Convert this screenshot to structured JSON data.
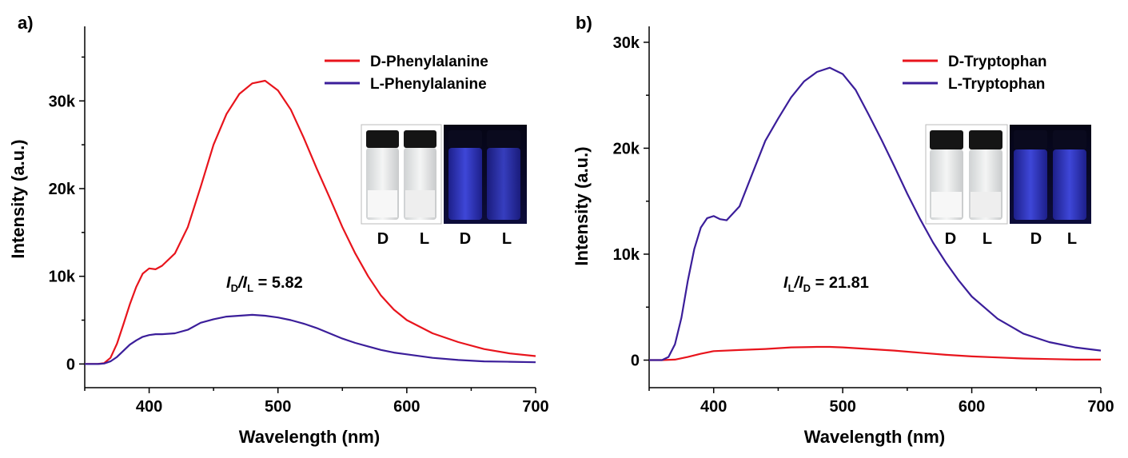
{
  "chart_data": [
    {
      "type": "line",
      "panel_label": "a)",
      "xlabel": "Wavelength (nm)",
      "ylabel": "Intensity (a.u.)",
      "xlim": [
        350,
        700
      ],
      "ylim": [
        -2700,
        38500
      ],
      "xticks": [
        400,
        500,
        600,
        700
      ],
      "yticks": [
        0,
        10000,
        20000,
        30000
      ],
      "ytick_labels": [
        "0",
        "10k",
        "20k",
        "30k"
      ],
      "legend_position": "top-right",
      "series": [
        {
          "name": "D-Phenylalanine",
          "color": "#e8141c",
          "x": [
            350,
            360,
            365,
            370,
            375,
            380,
            385,
            390,
            395,
            400,
            405,
            410,
            420,
            430,
            440,
            450,
            460,
            470,
            480,
            490,
            500,
            510,
            520,
            530,
            540,
            550,
            560,
            570,
            580,
            590,
            600,
            620,
            640,
            660,
            680,
            700
          ],
          "values": [
            0,
            0,
            100,
            700,
            2300,
            4500,
            6800,
            8800,
            10300,
            10900,
            10800,
            11200,
            12600,
            15600,
            20200,
            25000,
            28500,
            30800,
            32000,
            32300,
            31200,
            29000,
            25800,
            22300,
            19000,
            15600,
            12600,
            10000,
            7800,
            6200,
            5000,
            3500,
            2500,
            1700,
            1200,
            900
          ]
        },
        {
          "name": "L-Phenylalanine",
          "color": "#3b1e9a",
          "x": [
            350,
            360,
            365,
            370,
            375,
            380,
            385,
            390,
            395,
            400,
            405,
            410,
            420,
            430,
            440,
            450,
            460,
            470,
            480,
            490,
            500,
            510,
            520,
            530,
            540,
            550,
            560,
            570,
            580,
            590,
            600,
            620,
            640,
            660,
            680,
            700
          ],
          "values": [
            0,
            0,
            50,
            300,
            800,
            1500,
            2200,
            2700,
            3100,
            3300,
            3400,
            3400,
            3500,
            3900,
            4700,
            5100,
            5400,
            5500,
            5600,
            5500,
            5300,
            5000,
            4600,
            4100,
            3500,
            2900,
            2400,
            2000,
            1600,
            1300,
            1100,
            700,
            450,
            300,
            250,
            200
          ]
        }
      ],
      "annotation": {
        "prefix_1": "I",
        "sub_1": "D",
        "slash": "/",
        "prefix_2": "I",
        "sub_2": "L",
        "rest": " = 5.82"
      },
      "inset_labels": [
        "D",
        "L",
        "D",
        "L"
      ]
    },
    {
      "type": "line",
      "panel_label": "b)",
      "xlabel": "Wavelength (nm)",
      "ylabel": "Intensity (a.u.)",
      "xlim": [
        350,
        700
      ],
      "ylim": [
        -2600,
        31500
      ],
      "xticks": [
        400,
        500,
        600,
        700
      ],
      "yticks": [
        0,
        10000,
        20000,
        30000
      ],
      "ytick_labels": [
        "0",
        "10k",
        "20k",
        "30k"
      ],
      "legend_position": "top-right",
      "series": [
        {
          "name": "D-Tryptophan",
          "color": "#e8141c",
          "x": [
            350,
            360,
            370,
            380,
            390,
            400,
            420,
            440,
            460,
            480,
            490,
            500,
            520,
            540,
            560,
            580,
            600,
            620,
            640,
            660,
            680,
            700
          ],
          "values": [
            0,
            0,
            50,
            300,
            600,
            850,
            950,
            1050,
            1200,
            1250,
            1250,
            1200,
            1050,
            900,
            700,
            500,
            350,
            250,
            150,
            100,
            50,
            50
          ]
        },
        {
          "name": "L-Tryptophan",
          "color": "#3b1e9a",
          "x": [
            350,
            360,
            365,
            370,
            375,
            380,
            385,
            390,
            395,
            400,
            405,
            410,
            420,
            430,
            440,
            450,
            460,
            470,
            480,
            490,
            500,
            510,
            520,
            530,
            540,
            550,
            560,
            570,
            580,
            590,
            600,
            620,
            640,
            660,
            680,
            700
          ],
          "values": [
            0,
            0,
            300,
            1500,
            4000,
            7500,
            10500,
            12500,
            13400,
            13600,
            13300,
            13200,
            14500,
            17600,
            20700,
            22800,
            24800,
            26300,
            27200,
            27600,
            27000,
            25500,
            23200,
            20800,
            18300,
            15700,
            13300,
            11100,
            9200,
            7500,
            6000,
            3900,
            2500,
            1700,
            1200,
            900
          ]
        }
      ],
      "annotation": {
        "prefix_1": "I",
        "sub_1": "L",
        "slash": "/",
        "prefix_2": "I",
        "sub_2": "D",
        "rest": " = 21.81"
      },
      "inset_labels": [
        "D",
        "L",
        "D",
        "L"
      ]
    }
  ]
}
